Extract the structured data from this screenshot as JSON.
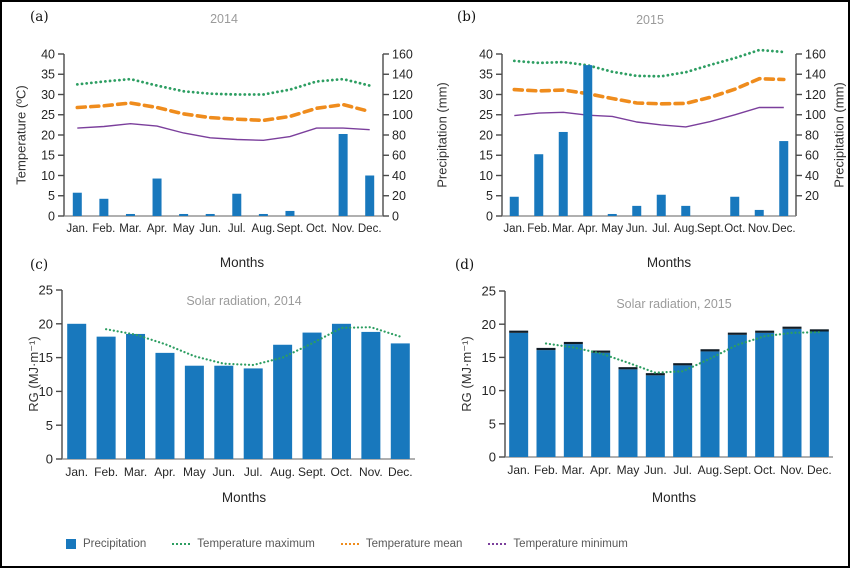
{
  "figure": {
    "background": "#ffffff",
    "border_color": "#000000"
  },
  "months": [
    "Jan.",
    "Feb.",
    "Mar.",
    "Apr.",
    "May",
    "Jun.",
    "Jul.",
    "Aug.",
    "Sept.",
    "Oct.",
    "Nov.",
    "Dec."
  ],
  "colors": {
    "bar": "#1878bd",
    "temp_max": "#2d9e62",
    "temp_mean": "#ef8c1d",
    "temp_min": "#7b3f9c",
    "solar_trend": "#2d9e62",
    "bar_cap": "#101c26",
    "panel_title": "#9b9b9b",
    "axis_line": "#4a4a4a",
    "tick_text": "#262626",
    "legend_text": "#595959"
  },
  "chart_data": [
    {
      "id": "a",
      "panel_letter": "(a)",
      "type": "bar+line",
      "title": "2014",
      "xlabel": "Months",
      "ylabel_left": "Temperature (ºC)",
      "ylabel_right": "Precipitation (mm)",
      "ylim_left": [
        0,
        40
      ],
      "yticks_left": [
        0,
        5,
        10,
        15,
        20,
        25,
        30,
        35,
        40
      ],
      "ylim_right": [
        0,
        160
      ],
      "yticks_right": [
        0,
        20,
        40,
        60,
        80,
        100,
        120,
        140,
        160
      ],
      "bar_series_name": "Precipitation",
      "bar_axis": "right",
      "grid": false,
      "precipitation_mm": [
        23,
        17,
        2,
        37,
        2,
        2,
        22,
        2,
        5,
        0,
        81,
        40
      ],
      "series": [
        {
          "name": "Temperature maximum",
          "values": [
            32.5,
            33.2,
            33.8,
            32.2,
            30.8,
            30.2,
            30.0,
            30.0,
            31.2,
            33.2,
            33.8,
            32.2
          ]
        },
        {
          "name": "Temperature mean",
          "values": [
            26.8,
            27.2,
            27.9,
            26.8,
            25.2,
            24.3,
            23.9,
            23.6,
            24.6,
            26.6,
            27.5,
            25.8
          ]
        },
        {
          "name": "Temperature minimum",
          "values": [
            21.7,
            22.1,
            22.8,
            22.2,
            20.5,
            19.3,
            18.9,
            18.7,
            19.6,
            21.7,
            21.7,
            21.3
          ]
        }
      ]
    },
    {
      "id": "b",
      "panel_letter": "(b)",
      "type": "bar+line",
      "title": "2015",
      "xlabel": "Months",
      "ylabel_right": "Precipitation (mm)",
      "ylim_left": [
        0,
        40
      ],
      "yticks_left": [
        0,
        5,
        10,
        15,
        20,
        25,
        30,
        35,
        40
      ],
      "ylim_right": [
        0,
        160
      ],
      "yticks_right": [
        20,
        40,
        60,
        80,
        100,
        120,
        140,
        160
      ],
      "bar_series_name": "Precipitation",
      "bar_axis": "right",
      "grid": false,
      "precipitation_mm": [
        19,
        61,
        83,
        149,
        2,
        10,
        21,
        10,
        0,
        19,
        6,
        74
      ],
      "series": [
        {
          "name": "Temperature maximum",
          "values": [
            38.3,
            37.8,
            38.0,
            37.2,
            35.6,
            34.6,
            34.5,
            35.5,
            37.3,
            39.0,
            41.0,
            40.5
          ]
        },
        {
          "name": "Temperature mean",
          "values": [
            31.2,
            30.9,
            31.1,
            30.2,
            29.0,
            27.9,
            27.7,
            27.8,
            29.3,
            31.3,
            33.9,
            33.7
          ]
        },
        {
          "name": "Temperature minimum",
          "values": [
            24.8,
            25.4,
            25.6,
            24.9,
            24.6,
            23.2,
            22.5,
            22.0,
            23.3,
            25.0,
            26.8,
            26.8
          ]
        }
      ]
    },
    {
      "id": "c",
      "panel_letter": "(c)",
      "type": "bar",
      "title": "Solar radiation, 2014",
      "xlabel": "Months",
      "ylabel": "RG (MJ·m⁻¹)",
      "ylim": [
        0,
        25
      ],
      "yticks": [
        0,
        5,
        10,
        15,
        20,
        25
      ],
      "grid": false,
      "values": [
        20.0,
        18.1,
        18.5,
        15.7,
        13.8,
        13.8,
        13.4,
        16.9,
        18.7,
        20.0,
        18.8,
        17.1
      ],
      "trend": {
        "name": "trend",
        "start_month_index": 1,
        "values": [
          19.2,
          18.4,
          17.0,
          15.2,
          14.1,
          13.9,
          15.0,
          17.1,
          19.4,
          19.5,
          18.1
        ]
      }
    },
    {
      "id": "d",
      "panel_letter": "(d)",
      "type": "bar",
      "title": "Solar radiation, 2015",
      "xlabel": "Months",
      "ylabel": "RG (MJ·m⁻¹)",
      "ylim": [
        0,
        25
      ],
      "yticks": [
        0,
        5,
        10,
        15,
        20,
        25
      ],
      "grid": false,
      "bar_caps": true,
      "values": [
        18.7,
        16.1,
        17.0,
        15.7,
        13.2,
        12.3,
        13.8,
        15.9,
        18.4,
        18.7,
        19.3,
        18.9
      ],
      "trend": {
        "name": "trend",
        "start_month_index": 1,
        "values": [
          17.1,
          16.5,
          15.6,
          14.2,
          12.7,
          12.9,
          14.8,
          16.9,
          18.2,
          18.7,
          18.8
        ]
      }
    }
  ],
  "legend": {
    "position": "bottom",
    "items": [
      {
        "label": "Precipitation",
        "marker": "square",
        "icon": "precipitation-swatch-icon",
        "color": "#1878bd"
      },
      {
        "label": "Temperature maximum",
        "marker": "dotted-line",
        "icon": "temp-max-line-icon",
        "color": "#2d9e62"
      },
      {
        "label": "Temperature mean",
        "marker": "dotted-line",
        "icon": "temp-mean-line-icon",
        "color": "#ef8c1d"
      },
      {
        "label": "Temperature minimum",
        "marker": "dotted-line",
        "icon": "temp-min-line-icon",
        "color": "#7b3f9c"
      }
    ]
  }
}
